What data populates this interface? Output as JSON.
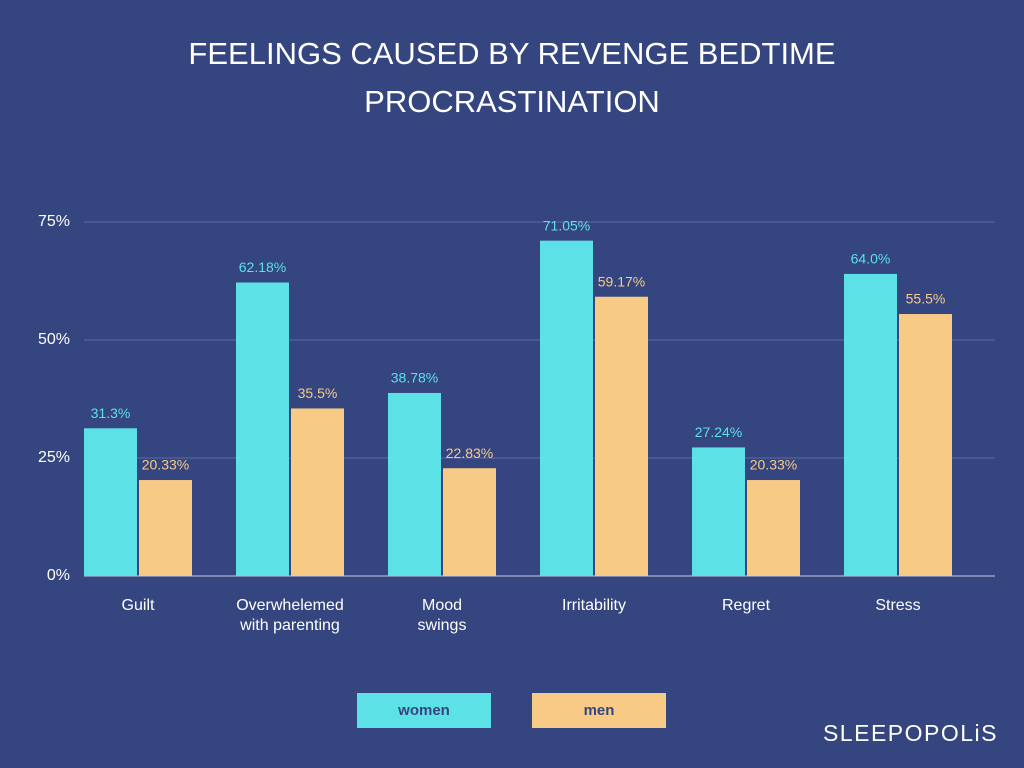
{
  "chart_data": {
    "type": "bar",
    "title": "FEELINGS CAUSED BY REVENGE BEDTIME PROCRASTINATION",
    "categories": [
      "Guilt",
      "Overwhelemed with parenting",
      "Mood swings",
      "Irritability",
      "Regret",
      "Stress"
    ],
    "series": [
      {
        "name": "women",
        "color": "#5ce1e6",
        "values": [
          31.3,
          62.18,
          38.78,
          71.05,
          27.24,
          64.0
        ],
        "value_labels": [
          "31.3%",
          "62.18%",
          "38.78%",
          "71.05%",
          "27.24%",
          "64.0%"
        ]
      },
      {
        "name": "men",
        "color": "#f7ca86",
        "values": [
          20.33,
          35.5,
          22.83,
          59.17,
          20.33,
          55.5
        ],
        "value_labels": [
          "20.33%",
          "35.5%",
          "22.83%",
          "59.17%",
          "20.33%",
          "55.5%"
        ]
      }
    ],
    "ylim": [
      0,
      75
    ],
    "yticks": [
      {
        "value": 0,
        "label": "0%"
      },
      {
        "value": 25,
        "label": "25%"
      },
      {
        "value": 50,
        "label": "50%"
      },
      {
        "value": 75,
        "label": "75%"
      }
    ],
    "grid": true,
    "legend": "bottom"
  },
  "brand": "SLEEPOPOLiS"
}
